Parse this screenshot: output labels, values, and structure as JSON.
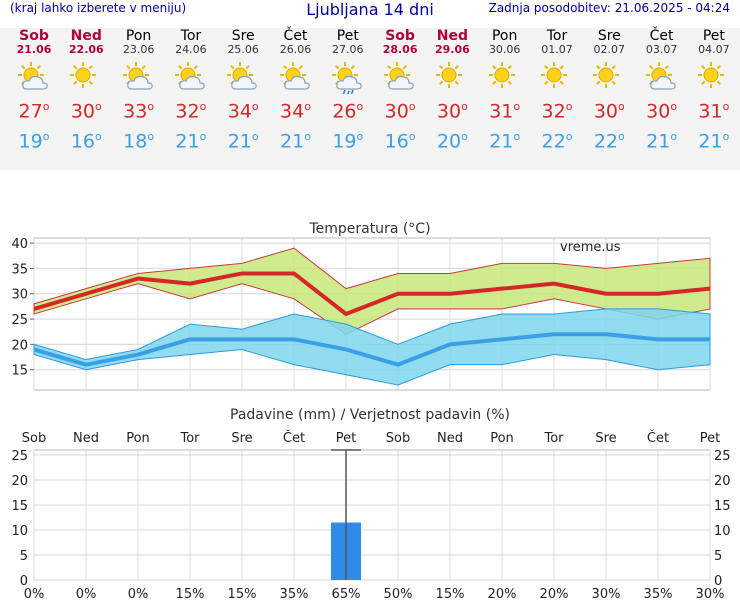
{
  "header": {
    "menu_hint": "(kraj lahko izberete v meniju)",
    "title": "Ljubljana 14 dni",
    "updated": "Zadnja posodobitev: 21.06.2025 - 04:24"
  },
  "days": [
    {
      "name": "Sob",
      "date": "21.06",
      "weekend": true,
      "icon": "sun-cloud-icon",
      "tmax": "27",
      "tmin": "19"
    },
    {
      "name": "Ned",
      "date": "22.06",
      "weekend": true,
      "icon": "sun-icon",
      "tmax": "30",
      "tmin": "16"
    },
    {
      "name": "Pon",
      "date": "23.06",
      "weekend": false,
      "icon": "sun-cloud-icon",
      "tmax": "33",
      "tmin": "18"
    },
    {
      "name": "Tor",
      "date": "24.06",
      "weekend": false,
      "icon": "sun-cloud-icon",
      "tmax": "32",
      "tmin": "21"
    },
    {
      "name": "Sre",
      "date": "25.06",
      "weekend": false,
      "icon": "sun-cloud-icon",
      "tmax": "34",
      "tmin": "21"
    },
    {
      "name": "Čet",
      "date": "26.06",
      "weekend": false,
      "icon": "sun-cloud-icon",
      "tmax": "34",
      "tmin": "21"
    },
    {
      "name": "Pet",
      "date": "27.06",
      "weekend": false,
      "icon": "sun-cloud-rain-icon",
      "tmax": "26",
      "tmin": "19"
    },
    {
      "name": "Sob",
      "date": "28.06",
      "weekend": true,
      "icon": "sun-cloud-icon",
      "tmax": "30",
      "tmin": "16"
    },
    {
      "name": "Ned",
      "date": "29.06",
      "weekend": true,
      "icon": "sun-icon",
      "tmax": "30",
      "tmin": "20"
    },
    {
      "name": "Pon",
      "date": "30.06",
      "weekend": false,
      "icon": "sun-icon",
      "tmax": "31",
      "tmin": "21"
    },
    {
      "name": "Tor",
      "date": "01.07",
      "weekend": false,
      "icon": "sun-icon",
      "tmax": "32",
      "tmin": "22"
    },
    {
      "name": "Sre",
      "date": "02.07",
      "weekend": false,
      "icon": "sun-icon",
      "tmax": "30",
      "tmin": "22"
    },
    {
      "name": "Čet",
      "date": "03.07",
      "weekend": false,
      "icon": "sun-cloud-icon",
      "tmax": "30",
      "tmin": "21"
    },
    {
      "name": "Pet",
      "date": "04.07",
      "weekend": false,
      "icon": "sun-icon",
      "tmax": "31",
      "tmin": "21"
    }
  ],
  "degree_symbol": "o",
  "colors": {
    "max": "#d42828",
    "min": "#3aa0e6",
    "max_band": "#c8e67a",
    "min_band": "#7fd6ec",
    "rain_bar": "#2f8be8",
    "weekend": "#b0003a"
  },
  "chart_data": [
    {
      "type": "line",
      "title": "Temperatura (°C)",
      "watermark": "vreme.us",
      "ylim": [
        11,
        41
      ],
      "yticks": [
        15,
        20,
        25,
        30,
        35,
        40
      ],
      "grid": true,
      "series": [
        {
          "values": [
            27,
            30,
            33,
            32,
            34,
            34,
            26,
            30,
            30,
            31,
            32,
            30,
            30,
            31
          ]
        },
        {
          "values": [
            19,
            16,
            18,
            21,
            21,
            21,
            19,
            16,
            20,
            21,
            22,
            22,
            21,
            21
          ]
        }
      ],
      "max_band_upper": [
        28,
        31,
        34,
        35,
        36,
        39,
        31,
        34,
        34,
        36,
        36,
        35,
        36,
        37
      ],
      "max_band_lower": [
        26,
        29,
        32,
        29,
        32,
        29,
        22,
        27,
        27,
        27,
        29,
        27,
        25,
        27
      ],
      "min_band_upper": [
        20,
        17,
        19,
        24,
        23,
        26,
        24,
        20,
        24,
        26,
        26,
        27,
        27,
        26
      ],
      "min_band_lower": [
        18,
        15,
        17,
        18,
        19,
        16,
        14,
        12,
        16,
        16,
        18,
        17,
        15,
        16
      ]
    },
    {
      "type": "bar",
      "title": "Padavine (mm) / Verjetnost padavin (%)",
      "ylim": [
        0,
        26
      ],
      "yticks": [
        0,
        5,
        10,
        15,
        20,
        25
      ],
      "categories": [
        "Sob",
        "Ned",
        "Pon",
        "Tor",
        "Sre",
        "Čet",
        "Pet",
        "Sob",
        "Ned",
        "Pon",
        "Tor",
        "Sre",
        "Čet",
        "Pet"
      ],
      "values": [
        0,
        0,
        0,
        0,
        0,
        0,
        11.5,
        0,
        0,
        0,
        0,
        0,
        0,
        0
      ],
      "error_high": [
        0,
        0,
        0,
        0,
        0,
        0,
        26,
        0,
        0,
        0,
        0,
        0,
        0,
        0
      ],
      "probability": [
        "0%",
        "0%",
        "0%",
        "15%",
        "15%",
        "35%",
        "65%",
        "50%",
        "15%",
        "20%",
        "20%",
        "30%",
        "35%",
        "30%"
      ]
    }
  ]
}
